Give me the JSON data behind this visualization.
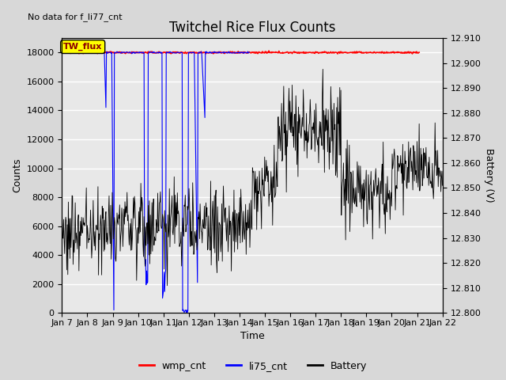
{
  "title": "Twitchel Rice Flux Counts",
  "subtitle": "No data for f_li77_cnt",
  "xlabel": "Time",
  "ylabel_left": "Counts",
  "ylabel_right": "Battery (V)",
  "xlim_days": [
    7,
    22
  ],
  "ylim_left": [
    0,
    19000
  ],
  "ylim_right": [
    12.8,
    12.91
  ],
  "yticks_left": [
    0,
    2000,
    4000,
    6000,
    8000,
    10000,
    12000,
    14000,
    16000,
    18000
  ],
  "yticks_right": [
    12.8,
    12.81,
    12.82,
    12.83,
    12.84,
    12.85,
    12.86,
    12.87,
    12.88,
    12.89,
    12.9,
    12.91
  ],
  "xtick_labels": [
    "Jan 7",
    "Jan 8",
    "Jan 9",
    "Jan 10",
    "Jan 11",
    "Jan 12",
    "Jan 13",
    "Jan 14",
    "Jan 15",
    "Jan 16",
    "Jan 17",
    "Jan 18",
    "Jan 19",
    "Jan 20",
    "Jan 21",
    "Jan 22"
  ],
  "wmp_color": "red",
  "li75_color": "blue",
  "battery_color": "black",
  "legend_labels": [
    "wmp_cnt",
    "li75_cnt",
    "Battery"
  ],
  "annotation_text": "TW_flux",
  "annotation_color": "yellow",
  "annotation_border": "black",
  "bg_color": "#d8d8d8",
  "plot_bg_color": "#e8e8e8",
  "title_fontsize": 12,
  "label_fontsize": 9,
  "tick_fontsize": 8
}
